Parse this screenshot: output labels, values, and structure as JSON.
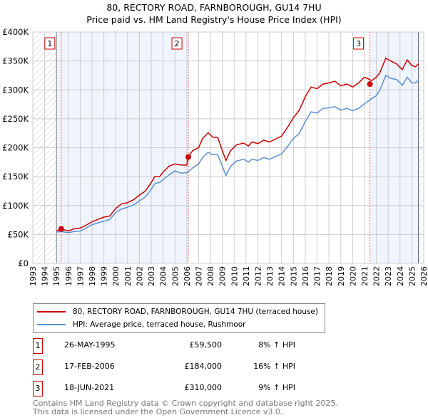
{
  "title": "80, RECTORY ROAD, FARNBOROUGH, GU14 7HU",
  "subtitle": "Price paid vs. HM Land Registry's House Price Index (HPI)",
  "chart_data": {
    "type": "line",
    "xlim": [
      1993,
      2026
    ],
    "ylim": [
      0,
      400000
    ],
    "yticks": [
      {
        "v": 0,
        "label": "£0"
      },
      {
        "v": 50000,
        "label": "£50K"
      },
      {
        "v": 100000,
        "label": "£100K"
      },
      {
        "v": 150000,
        "label": "£150K"
      },
      {
        "v": 200000,
        "label": "£200K"
      },
      {
        "v": 250000,
        "label": "£250K"
      },
      {
        "v": 300000,
        "label": "£300K"
      },
      {
        "v": 350000,
        "label": "£350K"
      },
      {
        "v": 400000,
        "label": "£400K"
      }
    ],
    "xticks": [
      "1993",
      "1994",
      "1995",
      "1996",
      "1997",
      "1998",
      "1999",
      "2000",
      "2001",
      "2002",
      "2003",
      "2004",
      "2005",
      "2006",
      "2007",
      "2008",
      "2009",
      "2010",
      "2011",
      "2012",
      "2013",
      "2014",
      "2015",
      "2016",
      "2017",
      "2018",
      "2019",
      "2020",
      "2021",
      "2022",
      "2023",
      "2024",
      "2025",
      "2026"
    ],
    "data_range": [
      1995.0,
      2025.55
    ],
    "series": [
      {
        "name": "80, RECTORY ROAD, FARNBOROUGH, GU14 7HU (terraced house)",
        "color": "#cc0000",
        "x": [
          1995.0,
          1995.4,
          1996,
          1996.5,
          1997,
          1997.5,
          1998,
          1998.5,
          1999,
          1999.5,
          2000,
          2000.5,
          2001,
          2001.5,
          2002,
          2002.5,
          2003,
          2003.3,
          2003.7,
          2004,
          2004.5,
          2005,
          2005.5,
          2006.0,
          2006.1,
          2006.5,
          2007,
          2007.3,
          2007.8,
          2008.2,
          2008.6,
          2009.0,
          2009.3,
          2009.7,
          2010.2,
          2010.8,
          2011.2,
          2011.5,
          2012,
          2012.5,
          2013,
          2013.5,
          2014,
          2014.5,
          2015,
          2015.5,
          2016,
          2016.5,
          2017,
          2017.5,
          2018,
          2018.5,
          2019,
          2019.5,
          2020,
          2020.5,
          2021,
          2021.4,
          2021.6,
          2022,
          2022.3,
          2022.8,
          2023.2,
          2023.7,
          2024.2,
          2024.6,
          2025,
          2025.3,
          2025.55
        ],
        "y": [
          56000,
          59500,
          56000,
          60000,
          61000,
          66000,
          72000,
          76000,
          80000,
          82000,
          95000,
          103000,
          105000,
          110000,
          118000,
          125000,
          140000,
          150000,
          150000,
          158000,
          168000,
          172000,
          170000,
          170000,
          184000,
          195000,
          200000,
          215000,
          226000,
          218000,
          218000,
          195000,
          178000,
          195000,
          205000,
          208000,
          203000,
          210000,
          207000,
          213000,
          210000,
          215000,
          220000,
          235000,
          252000,
          265000,
          288000,
          305000,
          302000,
          310000,
          312000,
          315000,
          307000,
          310000,
          305000,
          312000,
          322000,
          318000,
          316000,
          322000,
          330000,
          355000,
          350000,
          345000,
          335000,
          352000,
          342000,
          340000,
          345000
        ]
      },
      {
        "name": "HPI: Average price, terraced house, Rushmoor",
        "color": "#5b8fd4",
        "x": [
          1995.0,
          1995.4,
          1996,
          1996.5,
          1997,
          1997.5,
          1998,
          1998.5,
          1999,
          1999.5,
          2000,
          2000.5,
          2001,
          2001.5,
          2002,
          2002.5,
          2003,
          2003.3,
          2003.7,
          2004,
          2004.5,
          2005,
          2005.5,
          2006.0,
          2006.1,
          2006.5,
          2007,
          2007.3,
          2007.8,
          2008.2,
          2008.6,
          2009.0,
          2009.3,
          2009.7,
          2010.2,
          2010.8,
          2011.2,
          2011.5,
          2012,
          2012.5,
          2013,
          2013.5,
          2014,
          2014.5,
          2015,
          2015.5,
          2016,
          2016.5,
          2017,
          2017.5,
          2018,
          2018.5,
          2019,
          2019.5,
          2020,
          2020.5,
          2021,
          2021.4,
          2021.6,
          2022,
          2022.3,
          2022.8,
          2023.2,
          2023.7,
          2024.2,
          2024.6,
          2025,
          2025.3,
          2025.55
        ],
        "y": [
          54000,
          55000,
          53000,
          55000,
          56000,
          61000,
          67000,
          70000,
          73000,
          76000,
          88000,
          94000,
          97000,
          101000,
          108000,
          115000,
          128000,
          138000,
          140000,
          145000,
          153000,
          160000,
          156000,
          157000,
          158000,
          165000,
          172000,
          182000,
          192000,
          188000,
          188000,
          168000,
          152000,
          168000,
          177000,
          180000,
          175000,
          180000,
          178000,
          183000,
          180000,
          185000,
          189000,
          202000,
          216000,
          225000,
          245000,
          262000,
          260000,
          268000,
          269000,
          271000,
          265000,
          268000,
          264000,
          268000,
          276000,
          282000,
          285000,
          290000,
          300000,
          325000,
          320000,
          318000,
          308000,
          322000,
          312000,
          312000,
          317000
        ]
      }
    ],
    "sales": [
      {
        "label": "1",
        "x": 1995.4,
        "y": 59500,
        "date": "26-MAY-1995",
        "price": "£59,500",
        "hpi": "8% ↑ HPI"
      },
      {
        "label": "2",
        "x": 2006.13,
        "y": 184000,
        "date": "17-FEB-2006",
        "price": "£184,000",
        "hpi": "16% ↑ HPI"
      },
      {
        "label": "3",
        "x": 2021.46,
        "y": 310000,
        "date": "18-JUN-2021",
        "price": "£310,000",
        "hpi": "9% ↑ HPI"
      }
    ]
  },
  "legend": {
    "property": "80, RECTORY ROAD, FARNBOROUGH, GU14 7HU (terraced house)",
    "hpi": "HPI: Average price, terraced house, Rushmoor"
  },
  "footer": {
    "line1": "Contains HM Land Registry data © Crown copyright and database right 2025.",
    "line2": "This data is licensed under the Open Government Licence v3.0."
  }
}
